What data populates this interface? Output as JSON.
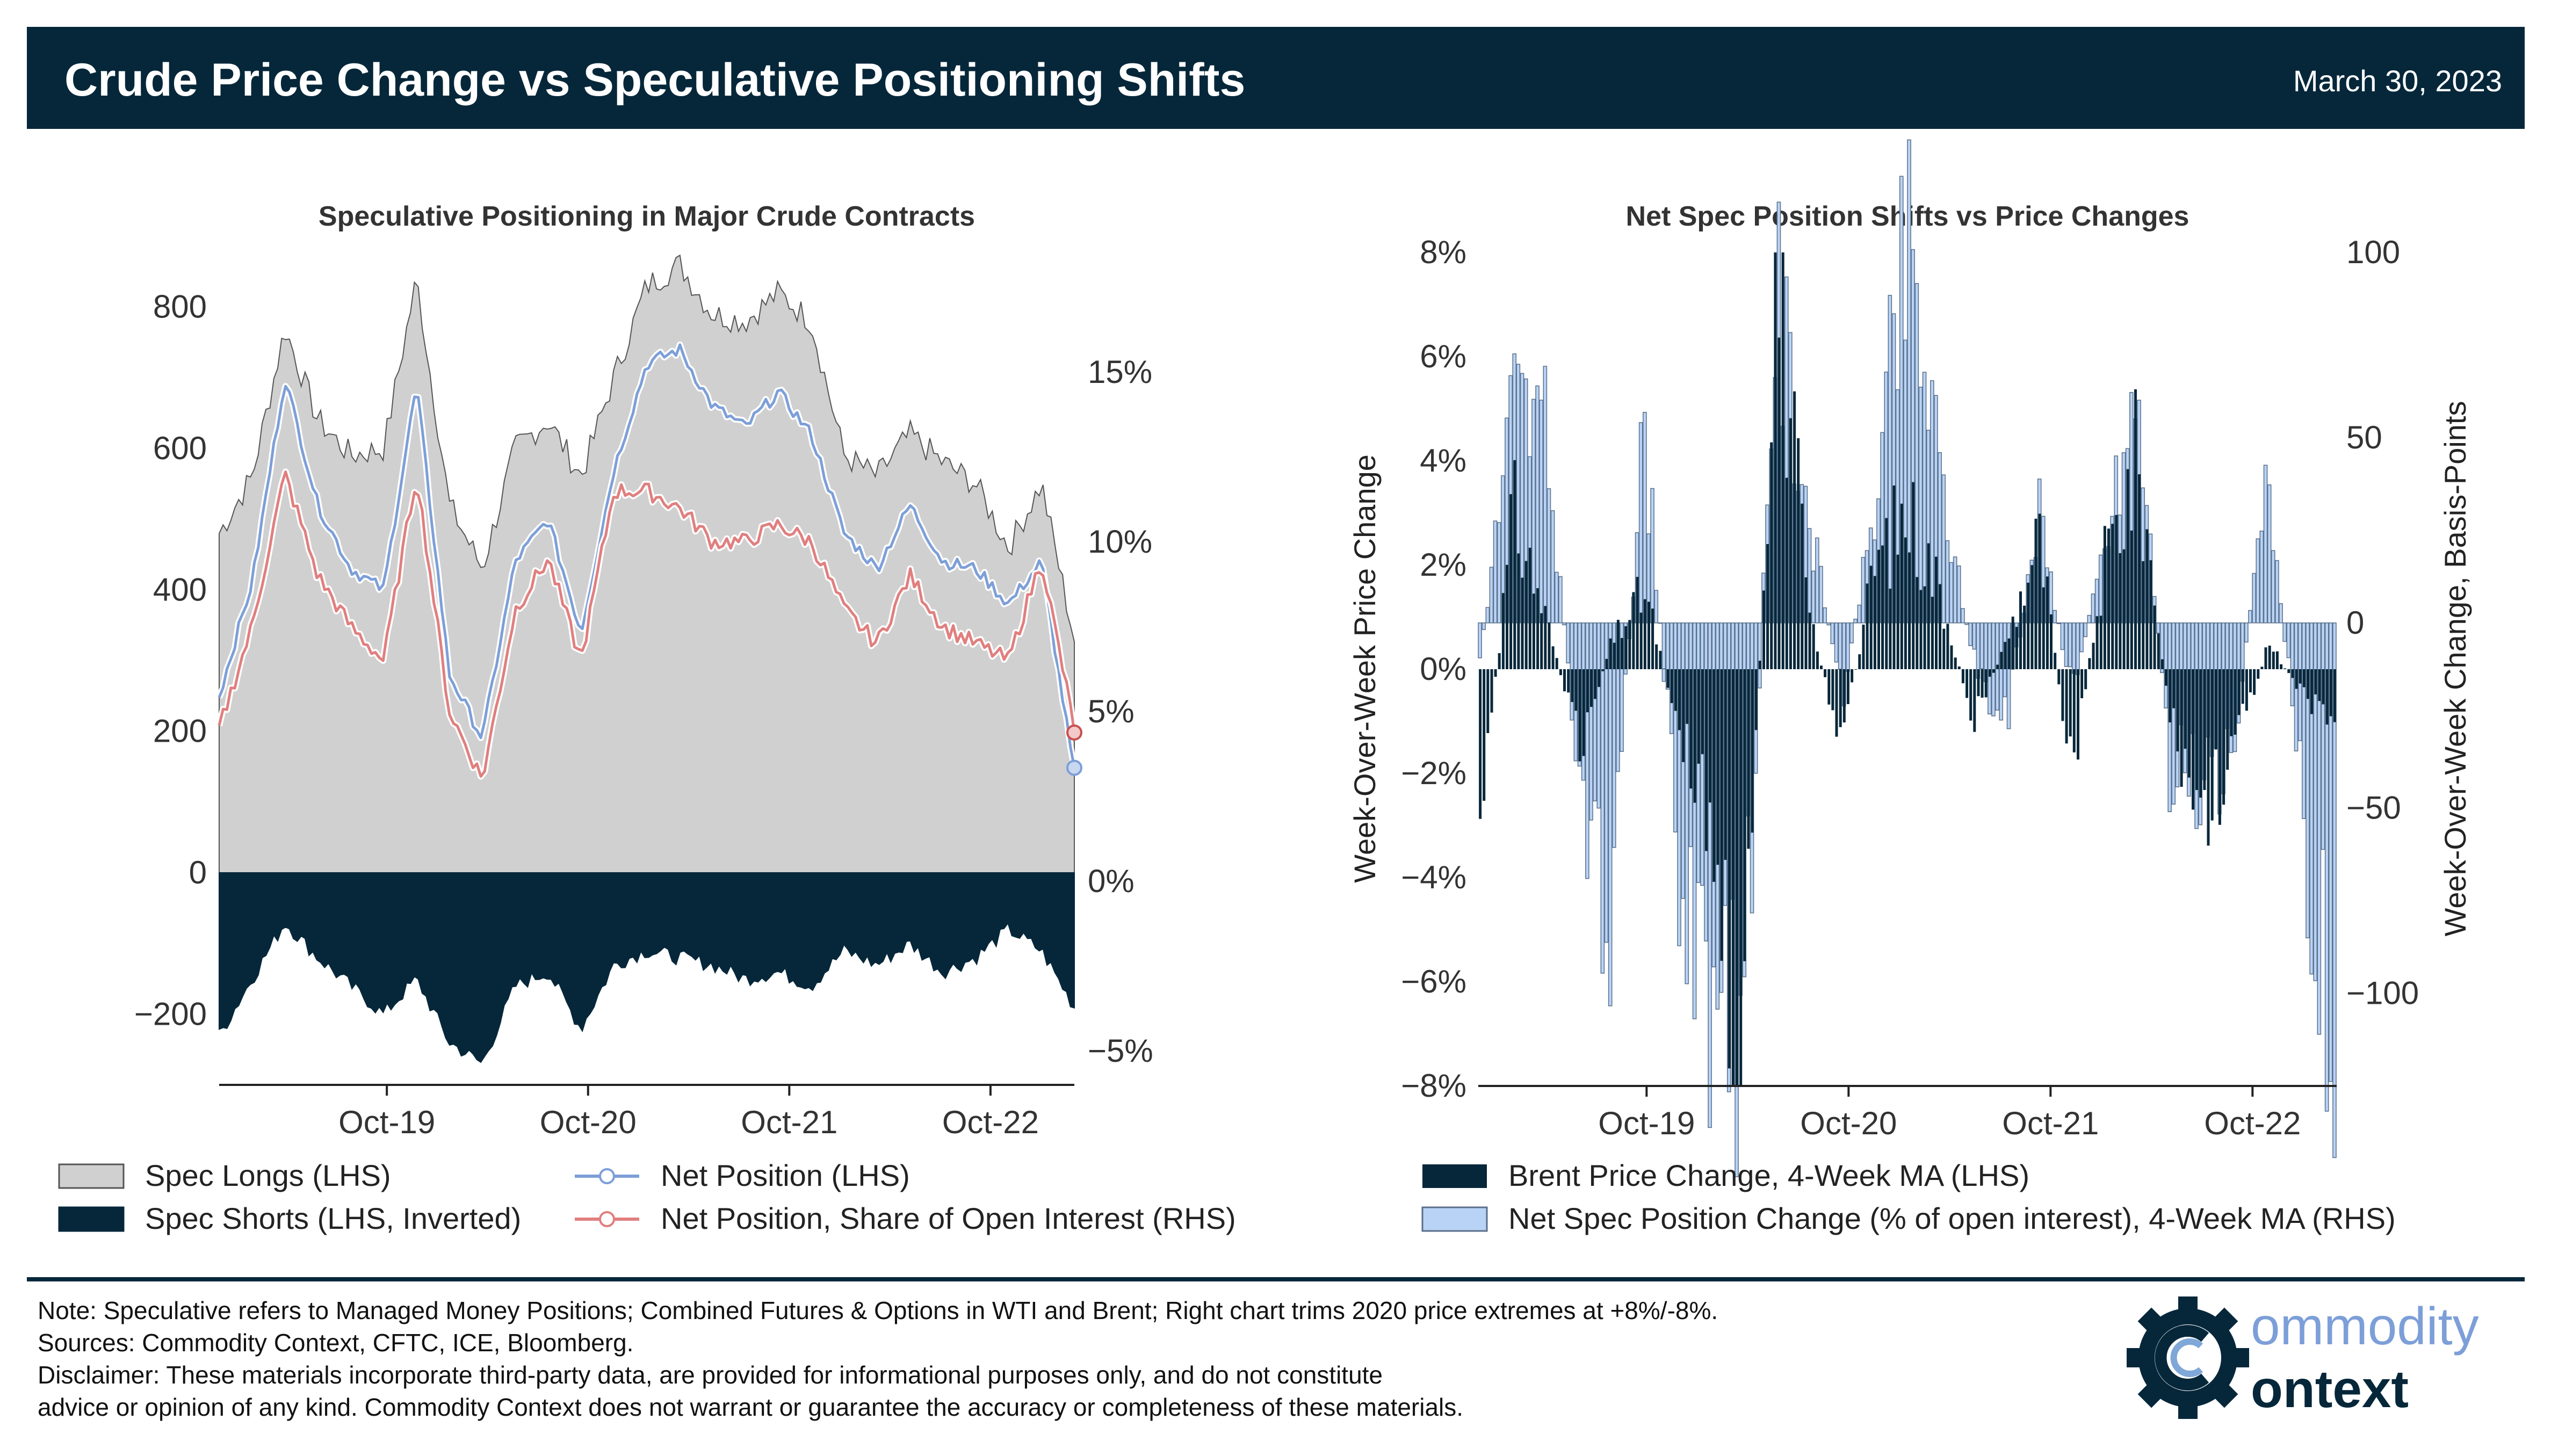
{
  "header": {
    "title": "Crude Price Change vs Speculative Positioning Shifts",
    "date": "March 30, 2023"
  },
  "colors": {
    "navy": "#06273a",
    "grey_fill": "#d0d0d0",
    "net_blue": "#7d9fd8",
    "net_red": "#e07f7f",
    "light_blue": "#b8d3f5"
  },
  "chart_data": [
    {
      "type": "area",
      "title": "Speculative Positioning in Major Crude Contracts",
      "x_ticks": [
        "Oct-19",
        "Oct-20",
        "Oct-21",
        "Oct-22"
      ],
      "y_left": {
        "ticks": [
          "800",
          "600",
          "400",
          "200",
          "0",
          "−200"
        ],
        "lim": [
          -300,
          900
        ]
      },
      "y_right": {
        "ticks": [
          "15%",
          "10%",
          "5%",
          "0%",
          "−5%"
        ],
        "lim": [
          -6,
          19
        ]
      },
      "legend": [
        "Spec Longs (LHS)",
        "Spec Shorts (LHS, Inverted)",
        "Net Position (LHS)",
        "Net Position, Share of Open Interest (RHS)"
      ],
      "x_dates": [
        "2018-12",
        "2019-02",
        "2019-04",
        "2019-06",
        "2019-08",
        "2019-10",
        "2019-12",
        "2020-02",
        "2020-04",
        "2020-06",
        "2020-08",
        "2020-10",
        "2020-12",
        "2021-02",
        "2021-04",
        "2021-06",
        "2021-08",
        "2021-10",
        "2021-12",
        "2022-02",
        "2022-04",
        "2022-06",
        "2022-08",
        "2022-10",
        "2022-12",
        "2023-02",
        "2023-03"
      ],
      "series": [
        {
          "name": "Spec Longs (LHS)",
          "values": [
            480,
            560,
            770,
            640,
            590,
            600,
            840,
            520,
            430,
            600,
            640,
            560,
            700,
            830,
            860,
            790,
            780,
            820,
            780,
            590,
            560,
            620,
            580,
            550,
            460,
            550,
            330
          ]
        },
        {
          "name": "Spec Shorts (LHS, Inverted)",
          "values": [
            -230,
            -150,
            -70,
            -120,
            -160,
            -200,
            -150,
            -240,
            -270,
            -160,
            -140,
            -220,
            -130,
            -110,
            -120,
            -130,
            -150,
            -140,
            -160,
            -110,
            -130,
            -100,
            -140,
            -120,
            -80,
            -110,
            -190
          ]
        },
        {
          "name": "Net Position (LHS)",
          "values": [
            250,
            410,
            700,
            520,
            430,
            400,
            690,
            280,
            190,
            440,
            500,
            340,
            570,
            720,
            740,
            660,
            630,
            680,
            620,
            480,
            430,
            520,
            440,
            430,
            380,
            440,
            140
          ]
        },
        {
          "name": "Net Position, Share of Open Interest (RHS)",
          "values": [
            4.5,
            7.5,
            12.0,
            9.0,
            7.5,
            6.5,
            12.0,
            5.0,
            3.0,
            8.0,
            9.5,
            6.5,
            11.5,
            11.5,
            11.0,
            10.0,
            10.0,
            10.5,
            10.0,
            8.0,
            7.0,
            9.0,
            7.5,
            7.0,
            6.5,
            9.5,
            4.5
          ]
        }
      ]
    },
    {
      "type": "bar",
      "title": "Net Spec Position Shifts vs Price Changes",
      "x_ticks": [
        "Oct-19",
        "Oct-20",
        "Oct-21",
        "Oct-22"
      ],
      "y_left": {
        "label": "Week-Over-Week Price Change",
        "ticks": [
          "8%",
          "6%",
          "4%",
          "2%",
          "0%",
          "−2%",
          "−4%",
          "−6%",
          "−8%"
        ],
        "lim": [
          -8,
          8
        ]
      },
      "y_right": {
        "label": "Week-Over-Week Change, Basis-Points",
        "ticks": [
          "100",
          "50",
          "0",
          "−50",
          "−100"
        ],
        "lim": [
          -125,
          100
        ]
      },
      "legend": [
        "Brent Price Change, 4-Week MA (LHS)",
        "Net Spec Position Change (% of open interest), 4-Week MA (RHS)"
      ],
      "x_dates": [
        "2018-12",
        "2019-02",
        "2019-04",
        "2019-06",
        "2019-08",
        "2019-10",
        "2019-12",
        "2020-02",
        "2020-04",
        "2020-06",
        "2020-08",
        "2020-10",
        "2020-12",
        "2021-02",
        "2021-04",
        "2021-06",
        "2021-08",
        "2021-10",
        "2021-12",
        "2022-02",
        "2022-04",
        "2022-06",
        "2022-08",
        "2022-10",
        "2022-12",
        "2023-02",
        "2023-03"
      ],
      "series": [
        {
          "name": "Brent Price Change, 4-Week MA (LHS)",
          "values": [
            -3.0,
            3.0,
            1.0,
            -1.5,
            0.5,
            1.5,
            -1.0,
            -3.0,
            -8.0,
            8.0,
            1.0,
            -1.5,
            2.0,
            3.0,
            1.5,
            -1.0,
            0.5,
            2.5,
            -2.0,
            2.0,
            4.0,
            -1.0,
            -3.0,
            -1.5,
            0.5,
            -0.5,
            -1.0
          ]
        },
        {
          "name": "Net Spec Position Change (% of open interest), 4-Week MA (RHS)",
          "values": [
            -10,
            60,
            50,
            -40,
            -80,
            55,
            -60,
            -100,
            -120,
            90,
            30,
            -20,
            30,
            100,
            40,
            -10,
            -30,
            30,
            -20,
            20,
            60,
            -40,
            -50,
            -25,
            40,
            -50,
            -110
          ]
        }
      ]
    }
  ],
  "footer": {
    "note": "Note: Speculative refers to Managed Money Positions; Combined Futures & Options in WTI and Brent; Right chart trims 2020 price extremes at +8%/-8%.",
    "sources": "Sources: Commodity Context, CFTC, ICE, Bloomberg.",
    "disclaimer_1": "Disclaimer: These materials incorporate third-party data, are provided for informational purposes only, and do not constitute",
    "disclaimer_2": "advice or opinion of any kind. Commodity Context does not warrant or guarantee the accuracy or completeness of these materials."
  },
  "logo": {
    "word_top": "ommodity",
    "word_bottom": "ontext"
  }
}
